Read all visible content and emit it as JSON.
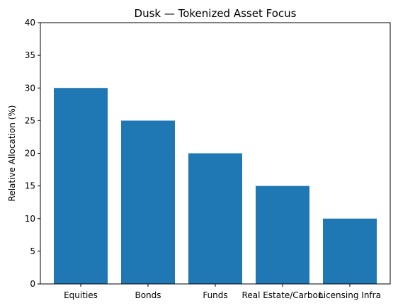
{
  "chart_data": {
    "type": "bar",
    "title": "Dusk — Tokenized Asset Focus",
    "xlabel": "",
    "ylabel": "Relative Allocation (%)",
    "categories": [
      "Equities",
      "Bonds",
      "Funds",
      "Real Estate/Carbon",
      "Licensing Infra"
    ],
    "values": [
      30,
      25,
      20,
      15,
      10
    ],
    "ylim": [
      0,
      40
    ],
    "yticks": [
      0,
      5,
      10,
      15,
      20,
      25,
      30,
      35,
      40
    ],
    "grid": false,
    "bar_color": "#1f77b4"
  }
}
